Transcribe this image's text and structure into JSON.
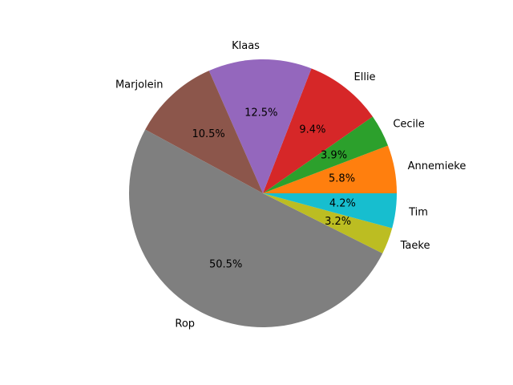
{
  "chart_data": {
    "type": "pie",
    "title": "",
    "start_angle_deg": 0,
    "direction": "counterclockwise",
    "slices": [
      {
        "label": "Annemieke",
        "value": 5.8,
        "pct_label": "5.8%",
        "color": "#ff7f0e"
      },
      {
        "label": "Cecile",
        "value": 3.9,
        "pct_label": "3.9%",
        "color": "#2ca02c"
      },
      {
        "label": "Ellie",
        "value": 9.4,
        "pct_label": "9.4%",
        "color": "#d62728"
      },
      {
        "label": "Klaas",
        "value": 12.5,
        "pct_label": "12.5%",
        "color": "#9467bd"
      },
      {
        "label": "Marjolein",
        "value": 10.5,
        "pct_label": "10.5%",
        "color": "#8c564b"
      },
      {
        "label": "Rop",
        "value": 50.5,
        "pct_label": "50.5%",
        "color": "#7f7f7f"
      },
      {
        "label": "Taeke",
        "value": 3.2,
        "pct_label": "3.2%",
        "color": "#bcbd22"
      },
      {
        "label": "Tim",
        "value": 4.2,
        "pct_label": "4.2%",
        "color": "#17becf"
      }
    ]
  }
}
